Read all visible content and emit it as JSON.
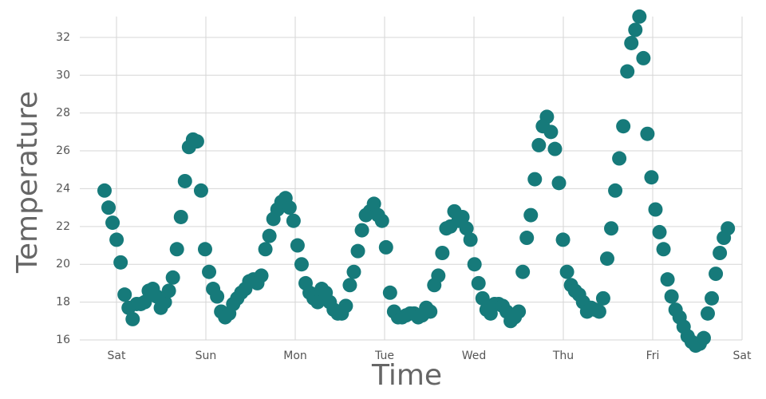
{
  "chart_data": {
    "type": "scatter",
    "x_label": "Time",
    "y_label": "Temperature",
    "color": "#167a7a",
    "grid": true,
    "xlim": [
      -0.3,
      7
    ],
    "ylim": [
      16,
      33.1
    ],
    "xticks": [
      {
        "value": 0,
        "label": "Sat"
      },
      {
        "value": 1,
        "label": "Sun"
      },
      {
        "value": 2,
        "label": "Mon"
      },
      {
        "value": 3,
        "label": "Tue"
      },
      {
        "value": 4,
        "label": "Wed"
      },
      {
        "value": 5,
        "label": "Thu"
      },
      {
        "value": 6,
        "label": "Fri"
      },
      {
        "value": 7,
        "label": "Sat"
      }
    ],
    "yticks": [
      16,
      18,
      20,
      22,
      24,
      26,
      28,
      30,
      32
    ],
    "x": [
      -0.134,
      -0.089,
      -0.044,
      0.001,
      0.046,
      0.091,
      0.136,
      0.181,
      0.226,
      0.271,
      0.316,
      0.361,
      0.406,
      0.451,
      0.496,
      0.541,
      0.586,
      0.631,
      0.676,
      0.721,
      0.766,
      0.811,
      0.856,
      0.901,
      0.946,
      0.991,
      1.036,
      1.081,
      1.126,
      1.171,
      1.216,
      1.261,
      1.306,
      1.351,
      1.396,
      1.441,
      1.486,
      1.531,
      1.576,
      1.621,
      1.666,
      1.711,
      1.756,
      1.801,
      1.846,
      1.891,
      1.936,
      1.981,
      2.026,
      2.071,
      2.116,
      2.161,
      2.206,
      2.251,
      2.296,
      2.341,
      2.386,
      2.431,
      2.476,
      2.521,
      2.566,
      2.611,
      2.656,
      2.701,
      2.746,
      2.791,
      2.836,
      2.881,
      2.926,
      2.971,
      3.016,
      3.061,
      3.106,
      3.151,
      3.196,
      3.241,
      3.286,
      3.331,
      3.376,
      3.421,
      3.466,
      3.511,
      3.556,
      3.601,
      3.646,
      3.691,
      3.736,
      3.781,
      3.826,
      3.871,
      3.916,
      3.961,
      4.006,
      4.051,
      4.096,
      4.141,
      4.186,
      4.231,
      4.276,
      4.321,
      4.366,
      4.411,
      4.456,
      4.501,
      4.546,
      4.591,
      4.636,
      4.681,
      4.726,
      4.771,
      4.816,
      4.861,
      4.906,
      4.951,
      4.996,
      5.041,
      5.086,
      5.131,
      5.176,
      5.221,
      5.266,
      5.311,
      5.356,
      5.401,
      5.446,
      5.491,
      5.536,
      5.581,
      5.626,
      5.671,
      5.716,
      5.761,
      5.806,
      5.851,
      5.896,
      5.941,
      5.986,
      6.031,
      6.076,
      6.121,
      6.166,
      6.211,
      6.256,
      6.301,
      6.346,
      6.391,
      6.436,
      6.481,
      6.526,
      6.571,
      6.616,
      6.661,
      6.706,
      6.751,
      6.796,
      6.841
    ],
    "values": [
      23.9,
      23.0,
      22.2,
      21.3,
      20.1,
      18.4,
      17.7,
      17.1,
      17.9,
      17.9,
      18.0,
      18.6,
      18.7,
      18.3,
      17.7,
      18.0,
      18.6,
      19.3,
      20.8,
      22.5,
      24.4,
      26.2,
      26.6,
      26.5,
      23.9,
      20.8,
      19.6,
      18.7,
      18.3,
      17.5,
      17.2,
      17.4,
      17.9,
      18.2,
      18.5,
      18.7,
      19.1,
      19.2,
      19.0,
      19.4,
      20.8,
      21.5,
      22.4,
      22.9,
      23.3,
      23.5,
      23.0,
      22.3,
      21.0,
      20.0,
      19.0,
      18.5,
      18.2,
      18.0,
      18.7,
      18.5,
      18.0,
      17.6,
      17.4,
      17.4,
      17.8,
      18.9,
      19.6,
      20.7,
      21.8,
      22.6,
      22.8,
      23.2,
      22.6,
      22.3,
      20.9,
      18.5,
      17.5,
      17.2,
      17.2,
      17.3,
      17.4,
      17.4,
      17.2,
      17.3,
      17.7,
      17.5,
      18.9,
      19.4,
      20.6,
      21.9,
      22.0,
      22.8,
      22.3,
      22.5,
      21.9,
      21.3,
      20.0,
      19.0,
      18.2,
      17.6,
      17.4,
      17.9,
      17.9,
      17.8,
      17.5,
      17.0,
      17.2,
      17.5,
      19.6,
      21.4,
      22.6,
      24.5,
      26.3,
      27.3,
      27.8,
      27.0,
      26.1,
      24.3,
      21.3,
      19.6,
      18.9,
      18.6,
      18.4,
      18.0,
      17.5,
      17.7,
      17.6,
      17.5,
      18.2,
      20.3,
      21.9,
      23.9,
      25.6,
      27.3,
      30.2,
      31.7,
      32.4,
      33.1,
      30.9,
      26.9,
      24.6,
      22.9,
      21.7,
      20.8,
      19.2,
      18.3,
      17.6,
      17.2,
      16.7,
      16.2,
      15.9,
      15.7,
      15.8,
      16.1,
      17.4,
      18.2,
      19.5,
      20.6,
      21.4,
      21.9
    ]
  }
}
